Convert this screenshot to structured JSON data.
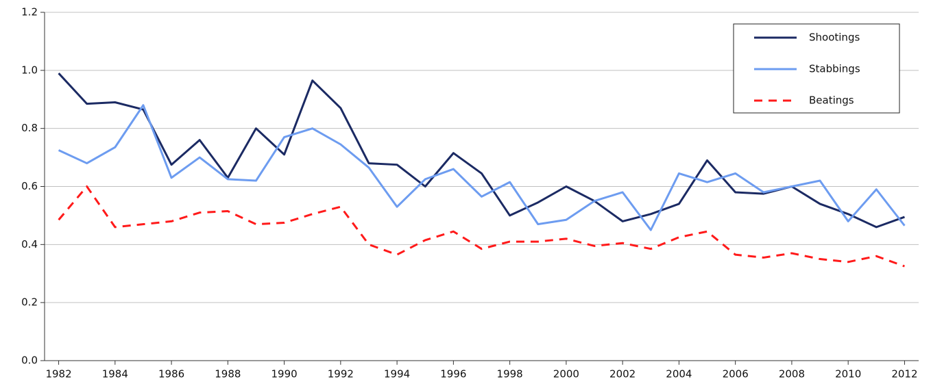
{
  "chart_data": {
    "type": "line",
    "x": [
      1982,
      1983,
      1984,
      1985,
      1986,
      1987,
      1988,
      1989,
      1990,
      1991,
      1992,
      1993,
      1994,
      1995,
      1996,
      1997,
      1998,
      1999,
      2000,
      2001,
      2002,
      2003,
      2004,
      2005,
      2006,
      2007,
      2008,
      2009,
      2010,
      2011,
      2012
    ],
    "xlim": [
      1981.5,
      2012.5
    ],
    "xticks": [
      1982,
      1984,
      1986,
      1988,
      1990,
      1992,
      1994,
      1996,
      1998,
      2000,
      2002,
      2004,
      2006,
      2008,
      2010,
      2012
    ],
    "ylim": [
      0,
      1.2
    ],
    "yticks": [
      {
        "value": 0,
        "label": "0.0"
      },
      0.2,
      0.4,
      0.6,
      0.8,
      {
        "value": 1,
        "label": "1.0"
      },
      1.2
    ],
    "grid": true,
    "legend": "top-right",
    "series": [
      {
        "name": "Shootings",
        "color": "#1b2a63",
        "dashed": false,
        "values": [
          0.99,
          0.885,
          0.89,
          0.865,
          0.675,
          0.76,
          0.63,
          0.8,
          0.71,
          0.965,
          0.87,
          0.68,
          0.675,
          0.6,
          0.715,
          0.645,
          0.5,
          0.545,
          0.6,
          0.55,
          0.48,
          0.505,
          0.54,
          0.69,
          0.58,
          0.575,
          0.6,
          0.54,
          0.505,
          0.46,
          0.495
        ]
      },
      {
        "name": "Stabbings",
        "color": "#6d9cf0",
        "dashed": false,
        "values": [
          0.725,
          0.68,
          0.735,
          0.88,
          0.63,
          0.7,
          0.625,
          0.62,
          0.77,
          0.8,
          0.745,
          0.665,
          0.53,
          0.625,
          0.66,
          0.565,
          0.615,
          0.47,
          0.485,
          0.55,
          0.58,
          0.45,
          0.645,
          0.615,
          0.645,
          0.58,
          0.6,
          0.62,
          0.48,
          0.59,
          0.465
        ]
      },
      {
        "name": "Beatings",
        "color": "#ff1a1a",
        "dashed": true,
        "values": [
          0.485,
          0.6,
          0.46,
          0.47,
          0.48,
          0.51,
          0.515,
          0.47,
          0.475,
          0.505,
          0.53,
          0.4,
          0.365,
          0.415,
          0.445,
          0.385,
          0.41,
          0.41,
          0.42,
          0.395,
          0.405,
          0.385,
          0.425,
          0.445,
          0.365,
          0.355,
          0.37,
          0.35,
          0.34,
          0.36,
          0.325
        ]
      }
    ]
  }
}
